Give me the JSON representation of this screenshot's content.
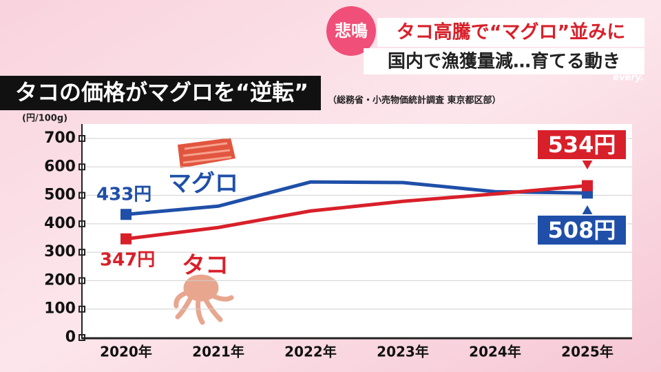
{
  "header": {
    "badge": "悲鳴",
    "headline": "タコ高騰で“マグロ”並みに",
    "subheadline": "国内で漁獲量減…育てる動き",
    "program": "every."
  },
  "chart_data": {
    "type": "line",
    "title": "タコの価格がマグロを“逆転”",
    "source": "（総務省・小売物価統計調査 東京都区部）",
    "y_label": "(円/100g)",
    "categories": [
      "2020年",
      "2021年",
      "2022年",
      "2023年",
      "2024年",
      "2025年"
    ],
    "series": [
      {
        "name": "マグロ",
        "color": "#1f4fa8",
        "values": [
          433,
          462,
          547,
          545,
          513,
          508
        ],
        "value_labels": [
          "433円",
          null,
          null,
          null,
          null,
          "508円"
        ]
      },
      {
        "name": "タコ",
        "color": "#d8202a",
        "values": [
          347,
          387,
          445,
          479,
          505,
          534
        ],
        "value_labels": [
          "347円",
          null,
          null,
          null,
          null,
          "534円"
        ]
      }
    ],
    "ylim": [
      0,
      700
    ],
    "yticks": [
      0,
      100,
      200,
      300,
      400,
      500,
      600,
      700
    ],
    "grid": true
  }
}
